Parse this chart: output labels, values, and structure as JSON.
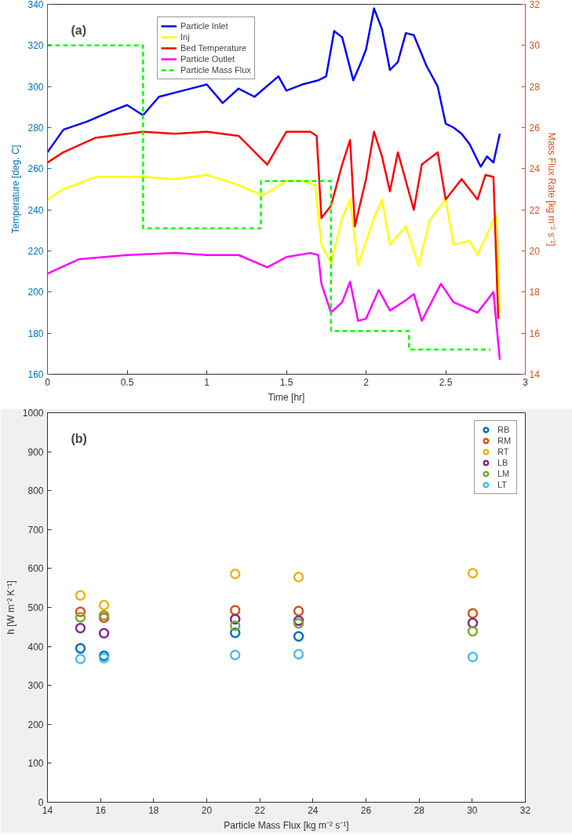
{
  "chart_data": [
    {
      "type": "line",
      "xlabel": "Time [hr]",
      "ylabel": "Temperature [deg. C]",
      "y2label": "Mass Flux Rate [kg m⁻² s⁻¹]",
      "annotations": [
        "(a)"
      ],
      "xlim": [
        0,
        3
      ],
      "xticks": [
        0,
        0.5,
        1,
        1.5,
        2,
        2.5,
        3
      ],
      "ylim": [
        160,
        340
      ],
      "yticks": [
        160,
        180,
        200,
        220,
        240,
        260,
        280,
        300,
        320,
        340
      ],
      "y2lim": [
        14,
        32
      ],
      "y2ticks": [
        14,
        16,
        18,
        20,
        22,
        24,
        26,
        28,
        30,
        32
      ],
      "grid": false,
      "legend": "top",
      "line_style": "solid",
      "marker": "none",
      "series": [
        {
          "name": "Particle Inlet",
          "color": "#0000ff",
          "x": [
            0,
            0.1,
            0.25,
            0.4,
            0.5,
            0.6,
            0.7,
            0.85,
            1.0,
            1.1,
            1.2,
            1.3,
            1.45,
            1.5,
            1.6,
            1.7,
            1.75,
            1.8,
            1.85,
            1.92,
            1.97,
            2.0,
            2.05,
            2.1,
            2.15,
            2.2,
            2.25,
            2.3,
            2.38,
            2.45,
            2.5,
            2.55,
            2.6,
            2.65,
            2.72,
            2.76,
            2.8,
            2.84
          ],
          "values": [
            268,
            279,
            283,
            288,
            291,
            286,
            295,
            298,
            301,
            292,
            299,
            295,
            305,
            298,
            301,
            303,
            305,
            327,
            324,
            303,
            312,
            318,
            338,
            328,
            308,
            312,
            326,
            325,
            310,
            300,
            282,
            280,
            277,
            272,
            261,
            266,
            263,
            277
          ]
        },
        {
          "name": "Inj",
          "color": "#ffff00",
          "x": [
            0,
            0.1,
            0.3,
            0.6,
            0.8,
            1.0,
            1.2,
            1.35,
            1.5,
            1.6,
            1.68,
            1.72,
            1.78,
            1.85,
            1.9,
            1.95,
            2.05,
            2.1,
            2.15,
            2.25,
            2.33,
            2.4,
            2.5,
            2.55,
            2.65,
            2.7,
            2.8,
            2.82,
            2.84
          ],
          "values": [
            245,
            250,
            256,
            256,
            255,
            257,
            252,
            247,
            254,
            254,
            252,
            223,
            214,
            236,
            245,
            213,
            236,
            245,
            223,
            232,
            213,
            235,
            245,
            223,
            225,
            218,
            235,
            237,
            190
          ]
        },
        {
          "name": "Bed Temperature",
          "color": "#ff0000",
          "x": [
            0,
            0.1,
            0.3,
            0.6,
            0.8,
            1.0,
            1.2,
            1.38,
            1.5,
            1.65,
            1.69,
            1.72,
            1.78,
            1.85,
            1.9,
            1.93,
            2.0,
            2.05,
            2.1,
            2.15,
            2.2,
            2.3,
            2.35,
            2.45,
            2.5,
            2.6,
            2.7,
            2.75,
            2.8,
            2.83
          ],
          "values": [
            263,
            268,
            275,
            278,
            277,
            278,
            276,
            262,
            278,
            278,
            276,
            236,
            242,
            262,
            274,
            232,
            255,
            278,
            266,
            249,
            268,
            240,
            262,
            268,
            245,
            255,
            245,
            257,
            256,
            187
          ]
        },
        {
          "name": "Particle Outlet",
          "color": "#ff00ff",
          "x": [
            0,
            0.2,
            0.5,
            0.8,
            1.0,
            1.2,
            1.38,
            1.5,
            1.65,
            1.7,
            1.72,
            1.78,
            1.85,
            1.9,
            1.95,
            2.0,
            2.08,
            2.15,
            2.25,
            2.3,
            2.35,
            2.47,
            2.55,
            2.7,
            2.8,
            2.84
          ],
          "values": [
            209,
            216,
            218,
            219,
            218,
            218,
            212,
            217,
            219,
            218,
            204,
            190,
            195,
            205,
            186,
            187,
            201,
            191,
            196,
            199,
            186,
            204,
            195,
            190,
            200,
            167
          ]
        },
        {
          "name": "Particle Mass Flux",
          "color": "#00ff00",
          "type": "step",
          "axis": "y2",
          "line_style": "dashed",
          "x": [
            0,
            0.6,
            1.34,
            1.78,
            2.27,
            2.78
          ],
          "values": [
            30,
            21.1,
            23.4,
            16.1,
            15.2,
            15.2
          ]
        }
      ]
    },
    {
      "type": "scatter",
      "xlabel": "Particle Mass Flux [kg m⁻² s⁻¹]",
      "ylabel": "h [W m⁻² K⁻¹]",
      "annotations": [
        "(b)"
      ],
      "xlim": [
        14,
        32
      ],
      "xticks": [
        14,
        16,
        18,
        20,
        22,
        24,
        26,
        28,
        30,
        32
      ],
      "ylim": [
        0,
        1000
      ],
      "yticks": [
        0,
        100,
        200,
        300,
        400,
        500,
        600,
        700,
        800,
        900,
        1000
      ],
      "grid": false,
      "legend": "top right",
      "marker": "circle",
      "x": [
        15.24,
        16.13,
        21.07,
        23.46,
        30.02
      ],
      "series": [
        {
          "name": "RB",
          "color": "#0072bd",
          "values": [
            395,
            376,
            435,
            426,
            null
          ]
        },
        {
          "name": "RM",
          "color": "#d95319",
          "values": [
            489,
            474,
            493,
            491,
            485
          ]
        },
        {
          "name": "RT",
          "color": "#edb120",
          "values": [
            531,
            506,
            586,
            578,
            588
          ]
        },
        {
          "name": "LB",
          "color": "#7e2f8e",
          "values": [
            447,
            434,
            470,
            466,
            460
          ]
        },
        {
          "name": "LM",
          "color": "#77ac30",
          "values": [
            475,
            480,
            453,
            459,
            439
          ]
        },
        {
          "name": "LT",
          "color": "#4dbeee",
          "values": [
            368,
            370,
            378,
            380,
            373
          ]
        }
      ]
    }
  ]
}
